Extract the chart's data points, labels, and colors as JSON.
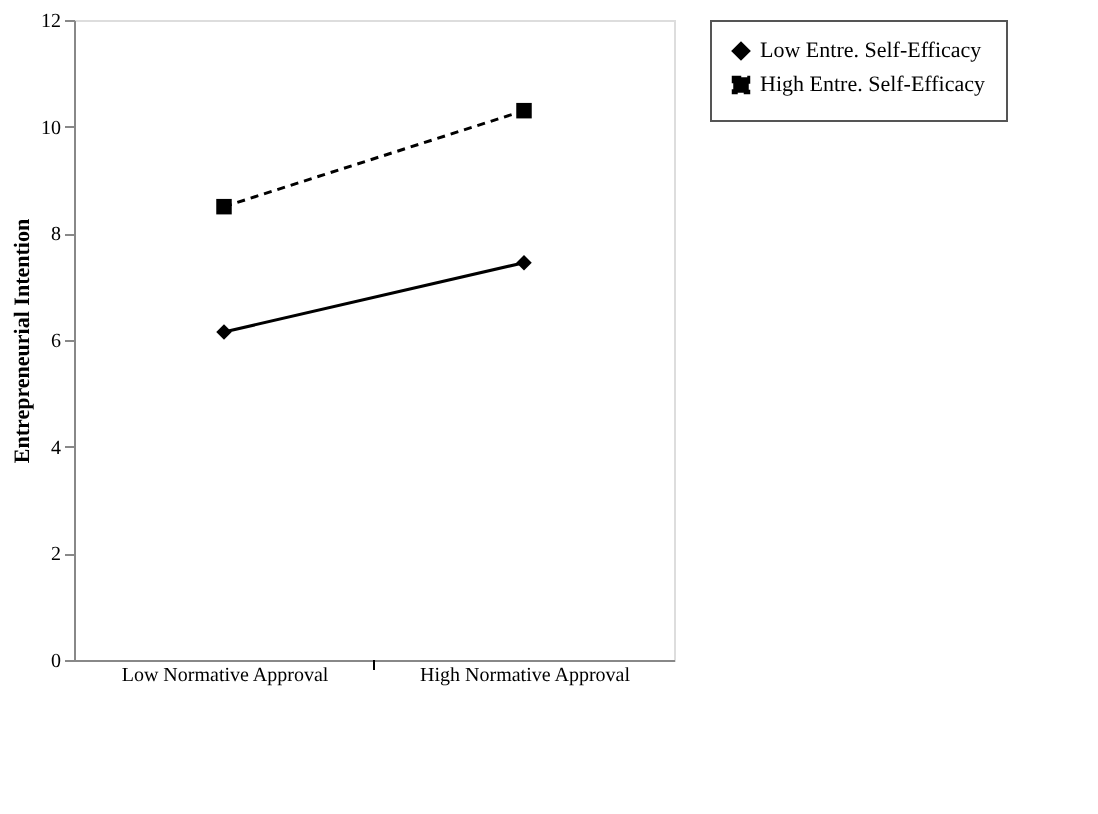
{
  "chart_data": {
    "type": "line",
    "ylabel": "Entrepreneurial Intention",
    "categories": [
      "Low Normative Approval",
      "High Normative Approval"
    ],
    "series": [
      {
        "name": "Low Entre. Self-Efficacy",
        "color": "#000000",
        "values": [
          6.15,
          7.45
        ],
        "marker": "diamond",
        "line_style": "solid"
      },
      {
        "name": "High Entre. Self-Efficacy",
        "color": "#000000",
        "values": [
          8.5,
          10.3
        ],
        "marker": "square",
        "line_style": "dashed"
      }
    ],
    "ylim": [
      0,
      12
    ],
    "yticks": [
      0,
      2,
      4,
      6,
      8,
      10,
      12
    ],
    "grid": false,
    "legend": "right"
  }
}
